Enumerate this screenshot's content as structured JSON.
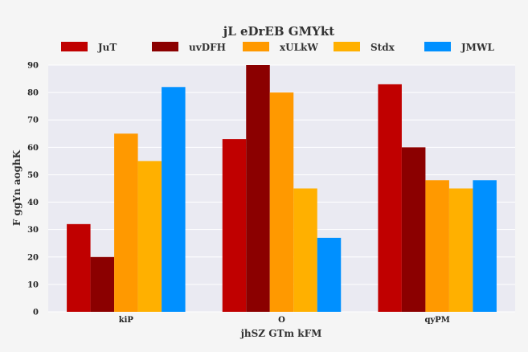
{
  "chart_data": {
    "type": "bar",
    "title": "jL eDrEB GMYkt",
    "xlabel": "jhSZ GTm kFM",
    "ylabel": "F ggYn aoghK",
    "categories": [
      "kiP",
      "O",
      "qyPM"
    ],
    "series": [
      {
        "name": "JuT",
        "color": "#c00000",
        "values": [
          32,
          63,
          83
        ]
      },
      {
        "name": "uvDFH",
        "color": "#8b0000",
        "values": [
          20,
          90,
          60
        ]
      },
      {
        "name": "xULkW",
        "color": "#ff9900",
        "values": [
          65,
          80,
          48
        ]
      },
      {
        "name": "Stdx",
        "color": "#ffb000",
        "values": [
          55,
          45,
          45
        ]
      },
      {
        "name": "JMWL",
        "color": "#0090ff",
        "values": [
          82,
          27,
          48
        ]
      }
    ],
    "ylim": [
      0,
      90
    ],
    "yticks": [
      0,
      10,
      20,
      30,
      40,
      50,
      60,
      70,
      80,
      90
    ],
    "grid": true,
    "legend_position": "top",
    "plot_background": "#eaeaf2",
    "page_background": "#f5f5f5"
  }
}
